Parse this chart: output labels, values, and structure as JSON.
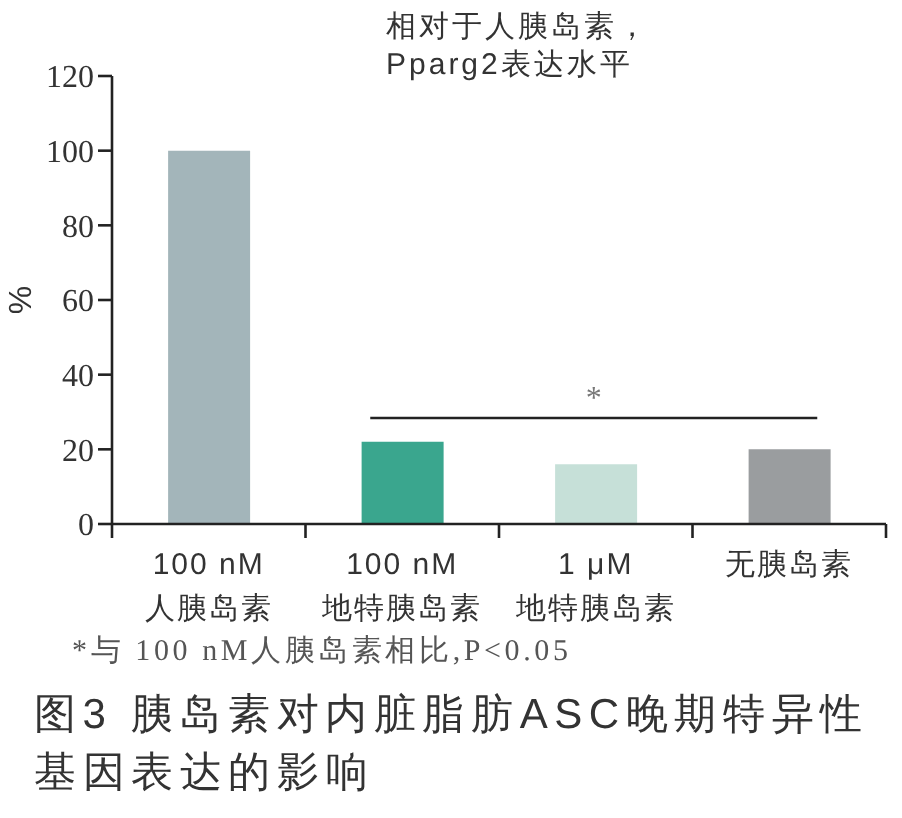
{
  "chart_data": {
    "type": "bar",
    "title": "相对于人胰岛素，Pparg2表达水平",
    "ylabel": "%",
    "categories": [
      "100 nM\n人胰岛素",
      "100 nM\n地特胰岛素",
      "1 μM\n地特胰岛素",
      "无胰岛素"
    ],
    "values": [
      100,
      22,
      16,
      20
    ],
    "colors": [
      "#a3b5ba",
      "#3aa68e",
      "#c6e0d8",
      "#9a9d9f"
    ],
    "ylim": [
      0,
      120
    ],
    "yticks": [
      0,
      20,
      40,
      60,
      80,
      100,
      120
    ],
    "grid": false,
    "legend": false,
    "annotations": [
      "*",
      "*与 100 nM人胰岛素相比,P<0.05",
      "图3 胰岛素对内脏脂肪ASC晚期特异性基因表达的影响"
    ]
  }
}
